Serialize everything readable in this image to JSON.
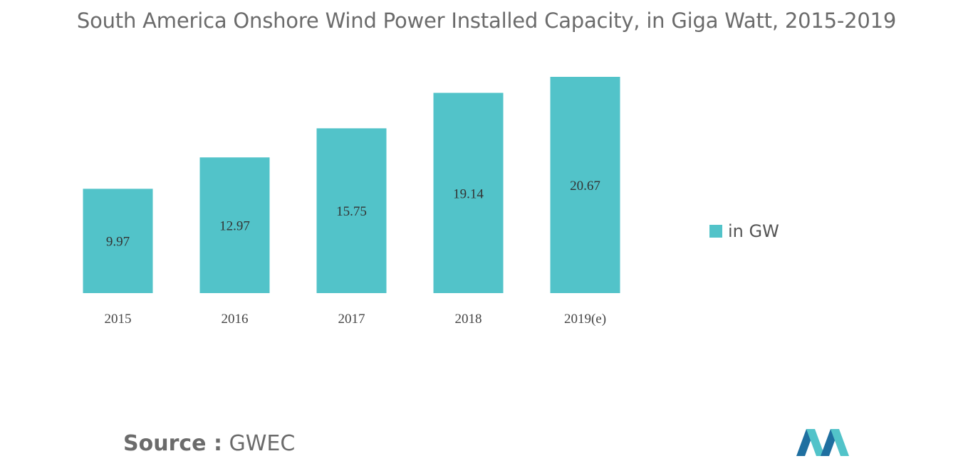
{
  "title": "South America Onshore Wind Power Installed Capacity, in Giga Watt, 2015-2019",
  "legend": {
    "label": "in GW"
  },
  "source": {
    "label": "Source :",
    "value": "GWEC"
  },
  "colors": {
    "bar": "#52c3c9",
    "logo_dark": "#1f6fa0",
    "logo_light": "#52c3c9"
  },
  "chart_data": {
    "type": "bar",
    "categories": [
      "2015",
      "2016",
      "2017",
      "2018",
      "2019(e)"
    ],
    "series": [
      {
        "name": "in GW",
        "values": [
          9.97,
          12.97,
          15.75,
          19.14,
          20.67
        ]
      }
    ],
    "data_labels": [
      "9.97",
      "12.97",
      "15.75",
      "19.14",
      "20.67"
    ],
    "ylim": [
      0,
      20.67
    ],
    "grid": false,
    "legend_position": "right"
  }
}
